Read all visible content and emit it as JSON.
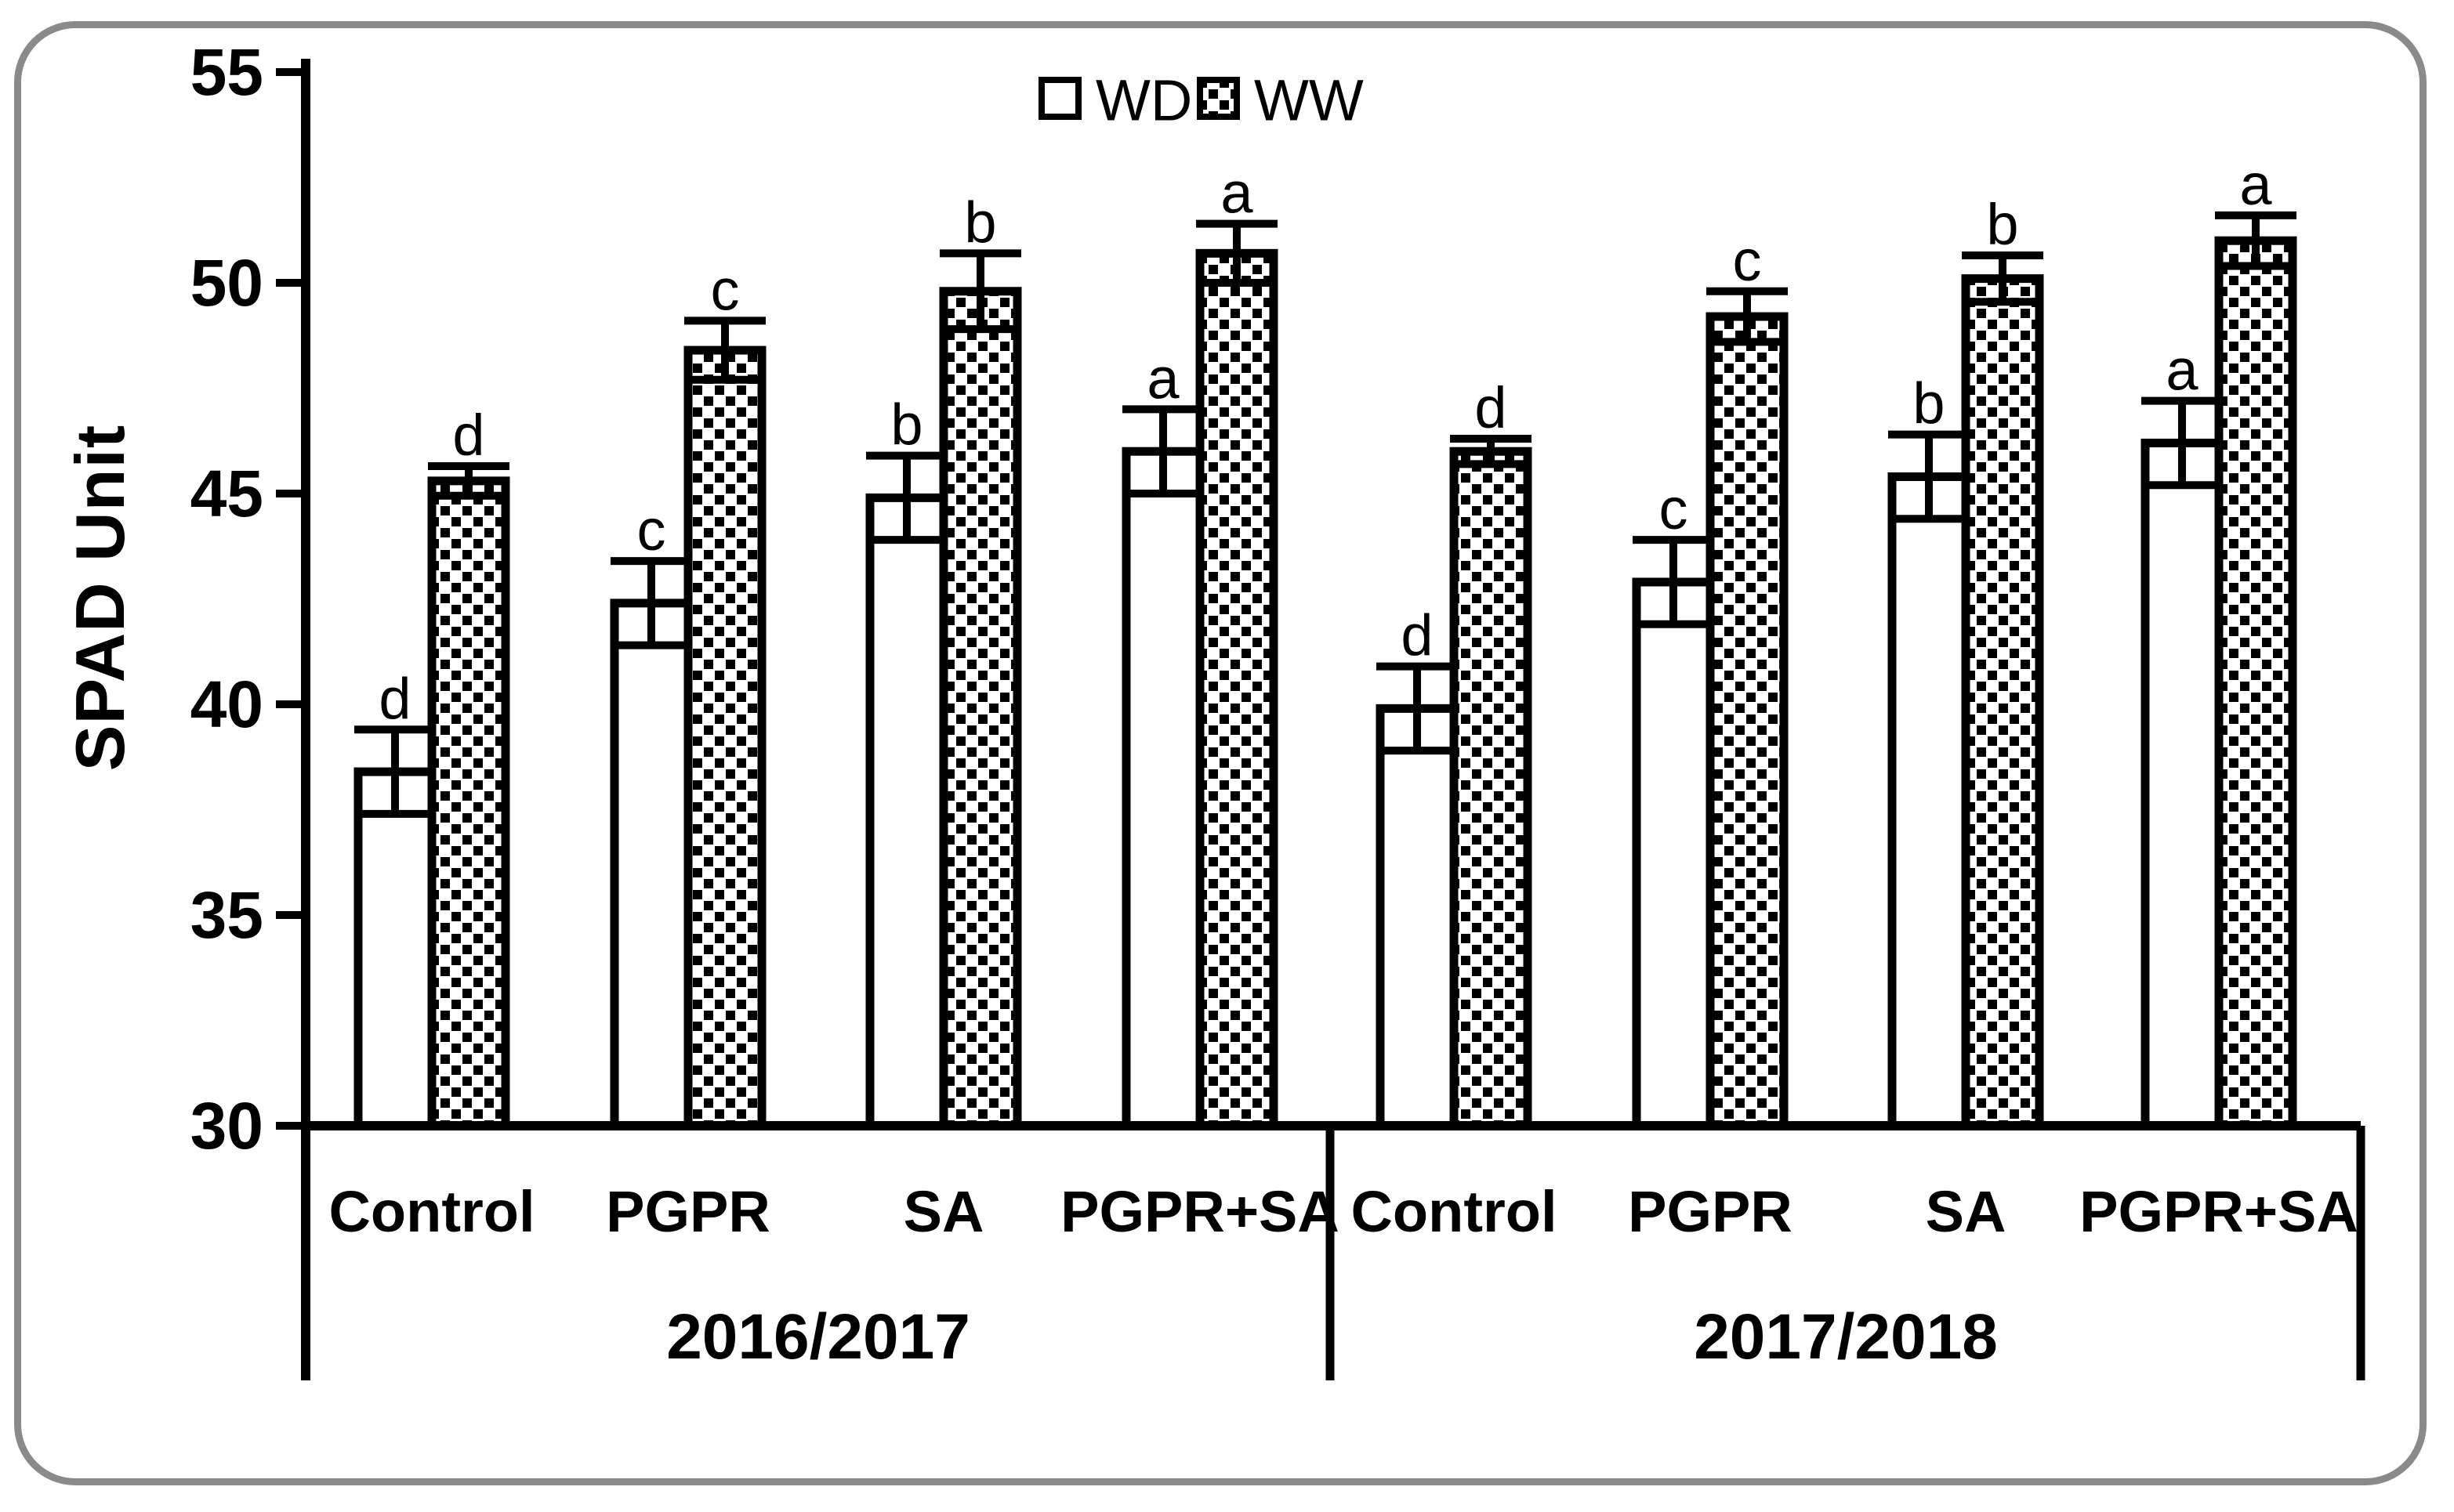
{
  "figure": {
    "border_color": "#8a8a8a",
    "background": "#ffffff",
    "ink_color": "#000000"
  },
  "chart_data": {
    "type": "bar",
    "title": "",
    "xlabel": "",
    "ylabel": "SPAD Unit",
    "ylim": [
      30,
      55
    ],
    "yticks": [
      30,
      35,
      40,
      45,
      50,
      55
    ],
    "grid": "off",
    "legend_position": "top-center",
    "legend": [
      {
        "name": "WD",
        "fill": "plain-white",
        "outline": "#000000"
      },
      {
        "name": "WW",
        "fill": "dot-pattern",
        "outline": "#000000"
      }
    ],
    "year_groups": [
      {
        "label": "2016/2017",
        "categories": [
          "Control",
          "PGPR",
          "SA",
          "PGPR+SA"
        ]
      },
      {
        "label": "2017/2018",
        "categories": [
          "Control",
          "PGPR",
          "SA",
          "PGPR+SA"
        ]
      }
    ],
    "categories_flat": [
      "Control 2016/2017",
      "PGPR 2016/2017",
      "SA 2016/2017",
      "PGPR+SA 2016/2017",
      "Control 2017/2018",
      "PGPR 2017/2018",
      "SA 2017/2018",
      "PGPR+SA 2017/2018"
    ],
    "series": [
      {
        "name": "WD",
        "values": [
          38.4,
          42.4,
          44.9,
          46.0,
          39.9,
          42.9,
          45.4,
          46.2
        ],
        "errors": [
          1.0,
          1.0,
          1.0,
          1.0,
          1.0,
          1.0,
          1.0,
          1.0
        ],
        "letters": [
          "d",
          "c",
          "b",
          "a",
          "d",
          "c",
          "b",
          "a"
        ]
      },
      {
        "name": "WW",
        "values": [
          45.3,
          48.4,
          49.8,
          50.7,
          46.0,
          49.2,
          50.1,
          51.0
        ],
        "errors": [
          0.35,
          0.7,
          0.9,
          0.7,
          0.3,
          0.6,
          0.55,
          0.6
        ],
        "letters": [
          "d",
          "c",
          "b",
          "a",
          "d",
          "c",
          "b",
          "a"
        ]
      }
    ]
  }
}
